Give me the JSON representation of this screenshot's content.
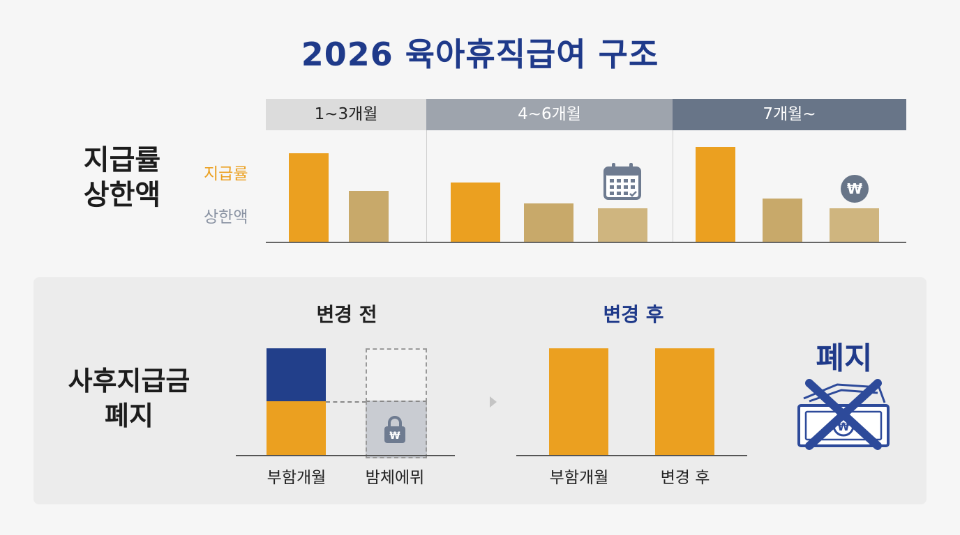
{
  "title": "2026 육아휴직급여 구조",
  "top_section": {
    "row_label_lines": [
      "지급률",
      "상한액"
    ],
    "legend": [
      {
        "label": "지급률",
        "color": "#e8a020"
      },
      {
        "label": "상한액",
        "color": "#8a93a3"
      }
    ],
    "phases": [
      "1~3개월",
      "4~6개월",
      "7개월~"
    ],
    "icons": [
      "calendar-icon",
      "won-coin-icon"
    ]
  },
  "bottom_section": {
    "row_label_lines": [
      "사후지급금",
      "폐지"
    ],
    "before_title": "변경 전",
    "after_title": "변경 후",
    "before_labels": [
      "부함개월",
      "밤체에뮈"
    ],
    "after_labels": [
      "부함개월",
      "변경 후"
    ],
    "abolish_label": "폐지",
    "icons": [
      "padlock-won-icon",
      "arrow-right-icon",
      "crossed-banknote-icon"
    ]
  },
  "colors": {
    "title": "#1f3a8a",
    "orange": "#eba020",
    "tan": "#c8a96a",
    "navy": "#223f8a",
    "gray_label": "#8a93a3"
  },
  "chart_data": {
    "type": "bar",
    "categories": [
      "1~3개월",
      "4~6개월",
      "7개월~"
    ],
    "series": [
      {
        "name": "지급률",
        "values": [
          100,
          67,
          107
        ]
      },
      {
        "name": "상한액",
        "values": [
          57,
          43,
          49
        ]
      },
      {
        "values": [
          null,
          38,
          38
        ]
      }
    ],
    "ylim": [
      0,
      110
    ],
    "grid": false
  }
}
